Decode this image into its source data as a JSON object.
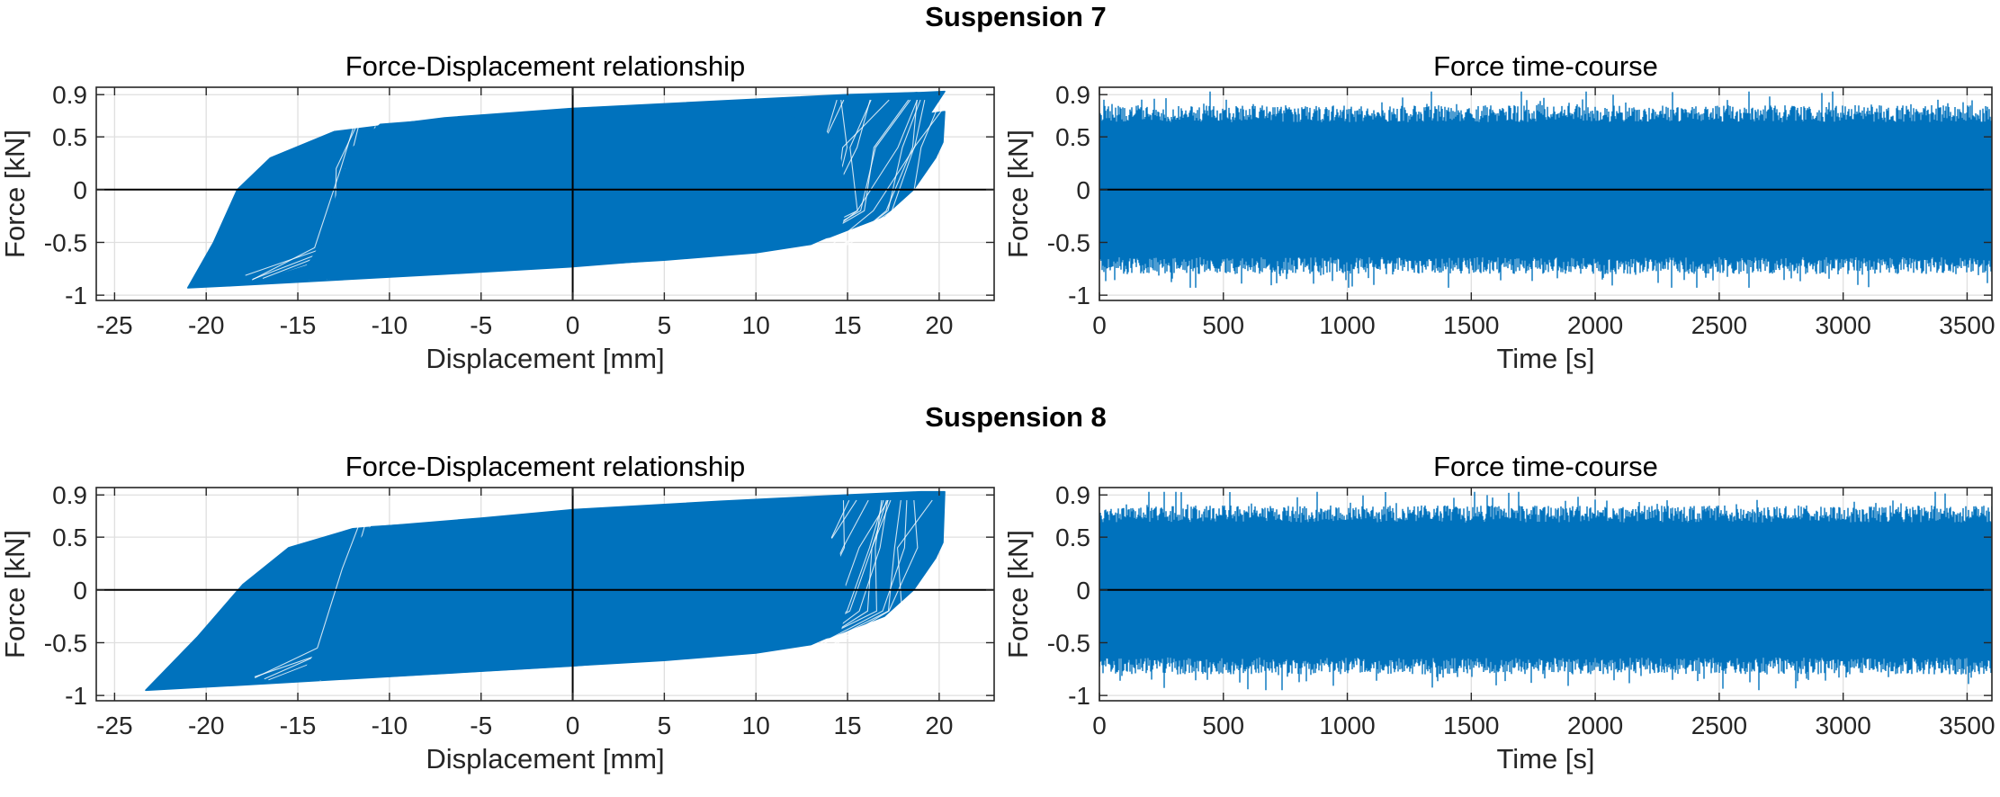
{
  "colors": {
    "series": "#0072bd",
    "axis": "#262626",
    "grid": "#dfdfdf",
    "zero_line": "#000000",
    "background": "#ffffff"
  },
  "chart_data": [
    {
      "group": "Suspension 7",
      "type": "line",
      "title": "Force-Displacement relationship",
      "xlabel": "Displacement [mm]",
      "ylabel": "Force [kN]",
      "xlim": [
        -26,
        23
      ],
      "ylim": [
        -1.05,
        0.97
      ],
      "xticks": [
        -25,
        -20,
        -15,
        -10,
        -5,
        0,
        5,
        10,
        15,
        20
      ],
      "yticks": [
        -1,
        -0.5,
        0,
        0.5,
        0.9
      ],
      "grid": true,
      "series": [
        {
          "points": [
            [
              -21,
              -0.93
            ],
            [
              -18.6,
              -0.91
            ],
            [
              -7.0,
              -0.8
            ],
            [
              0.0,
              -0.73
            ],
            [
              8.0,
              -0.62
            ],
            [
              14.0,
              -0.45
            ],
            [
              17.0,
              -0.25
            ],
            [
              18.6,
              0.0
            ],
            [
              19.8,
              0.3
            ],
            [
              20.2,
              0.45
            ],
            [
              20.3,
              0.74
            ],
            [
              19.5,
              0.72
            ],
            [
              20.3,
              0.93
            ],
            [
              19.0,
              0.92
            ],
            [
              15.0,
              0.9
            ],
            [
              8.0,
              0.84
            ],
            [
              0.0,
              0.77
            ],
            [
              -7.0,
              0.68
            ],
            [
              -13.0,
              0.55
            ],
            [
              -16.5,
              0.3
            ],
            [
              -18.3,
              0.0
            ],
            [
              -19.6,
              -0.5
            ],
            [
              -21,
              -0.93
            ]
          ],
          "envelope": {
            "lower": [
              [
                -20.2,
                -0.91
              ],
              [
                -15.0,
                -0.86
              ],
              [
                -10.0,
                -0.82
              ],
              [
                -5.0,
                -0.77
              ],
              [
                0.0,
                -0.72
              ],
              [
                5.0,
                -0.67
              ],
              [
                10.0,
                -0.6
              ],
              [
                13.0,
                -0.52
              ],
              [
                14.6,
                -0.4
              ],
              [
                15.0,
                -0.1
              ],
              [
                14.5,
                0.4
              ],
              [
                13.5,
                0.62
              ],
              [
                11.5,
                0.72
              ],
              [
                10.0,
                0.77
              ],
              [
                12.0,
                0.82
              ],
              [
                18.8,
                0.92
              ],
              [
                15.0,
                0.89
              ],
              [
                8.0,
                0.83
              ],
              [
                0.0,
                0.77
              ],
              [
                -6.0,
                0.68
              ],
              [
                -10.5,
                0.62
              ],
              [
                -12.0,
                0.4
              ],
              [
                -12.8,
                0.0
              ],
              [
                -13.5,
                -0.45
              ],
              [
                -14.5,
                -0.72
              ],
              [
                -17.8,
                -0.9
              ],
              [
                -20.2,
                -0.91
              ]
            ]
          }
        }
      ]
    },
    {
      "group": "Suspension 7",
      "type": "line",
      "title": "Force time-course",
      "xlabel": "Time [s]",
      "ylabel": "Force [kN]",
      "xlim": [
        0,
        3600
      ],
      "ylim": [
        -1.05,
        0.97
      ],
      "xticks": [
        0,
        500,
        1000,
        1500,
        2000,
        2500,
        3000,
        3500
      ],
      "yticks": [
        -1,
        -0.5,
        0,
        0.5,
        0.9
      ],
      "grid": true,
      "series": [
        {
          "upper_typical": 0.72,
          "upper_peak": 0.93,
          "lower_typical": -0.72,
          "lower_peak": -0.93,
          "seed": 7
        }
      ]
    },
    {
      "group": "Suspension 8",
      "type": "line",
      "title": "Force-Displacement relationship",
      "xlabel": "Displacement [mm]",
      "ylabel": "Force [kN]",
      "xlim": [
        -26,
        23
      ],
      "ylim": [
        -1.05,
        0.97
      ],
      "xticks": [
        -25,
        -20,
        -15,
        -10,
        -5,
        0,
        5,
        10,
        15,
        20
      ],
      "yticks": [
        -1,
        -0.5,
        0,
        0.5,
        0.9
      ],
      "grid": true,
      "series": [
        {
          "points": [
            [
              -23.3,
              -0.95
            ],
            [
              -18.0,
              -0.9
            ],
            [
              -8.0,
              -0.8
            ],
            [
              0.0,
              -0.72
            ],
            [
              8.0,
              -0.6
            ],
            [
              14.0,
              -0.45
            ],
            [
              17.0,
              -0.25
            ],
            [
              18.6,
              0.0
            ],
            [
              19.8,
              0.3
            ],
            [
              20.2,
              0.45
            ],
            [
              20.3,
              0.93
            ],
            [
              19.0,
              0.93
            ],
            [
              15.0,
              0.9
            ],
            [
              8.0,
              0.84
            ],
            [
              0.0,
              0.76
            ],
            [
              -5.0,
              0.68
            ],
            [
              -12.0,
              0.58
            ],
            [
              -15.5,
              0.4
            ],
            [
              -18.0,
              0.05
            ],
            [
              -20.5,
              -0.45
            ],
            [
              -23.3,
              -0.95
            ]
          ],
          "envelope": {
            "lower": [
              [
                -18.0,
                -0.89
              ],
              [
                -15.0,
                -0.86
              ],
              [
                -10.0,
                -0.82
              ],
              [
                -5.0,
                -0.77
              ],
              [
                0.0,
                -0.72
              ],
              [
                5.0,
                -0.67
              ],
              [
                10.0,
                -0.6
              ],
              [
                13.0,
                -0.52
              ],
              [
                14.6,
                -0.4
              ],
              [
                15.0,
                -0.1
              ],
              [
                14.5,
                0.4
              ],
              [
                13.5,
                0.62
              ],
              [
                11.5,
                0.72
              ],
              [
                10.0,
                0.77
              ],
              [
                12.0,
                0.83
              ],
              [
                19.0,
                0.93
              ],
              [
                15.0,
                0.89
              ],
              [
                8.0,
                0.83
              ],
              [
                0.0,
                0.76
              ],
              [
                -4.5,
                0.67
              ],
              [
                -11.0,
                0.6
              ],
              [
                -12.0,
                0.4
              ],
              [
                -12.8,
                0.0
              ],
              [
                -13.5,
                -0.45
              ],
              [
                -14.5,
                -0.72
              ],
              [
                -17.0,
                -0.89
              ],
              [
                -18.0,
                -0.89
              ]
            ]
          }
        }
      ]
    },
    {
      "group": "Suspension 8",
      "type": "line",
      "title": "Force time-course",
      "xlabel": "Time [s]",
      "ylabel": "Force [kN]",
      "xlim": [
        0,
        3600
      ],
      "ylim": [
        -1.05,
        0.97
      ],
      "xticks": [
        0,
        500,
        1000,
        1500,
        2000,
        2500,
        3000,
        3500
      ],
      "yticks": [
        -1,
        -0.5,
        0,
        0.5,
        0.9
      ],
      "grid": true,
      "series": [
        {
          "upper_typical": 0.72,
          "upper_peak": 0.93,
          "lower_typical": -0.72,
          "lower_peak": -0.95,
          "seed": 8
        }
      ]
    }
  ],
  "suptitles": [
    "Suspension 7",
    "Suspension 8"
  ]
}
